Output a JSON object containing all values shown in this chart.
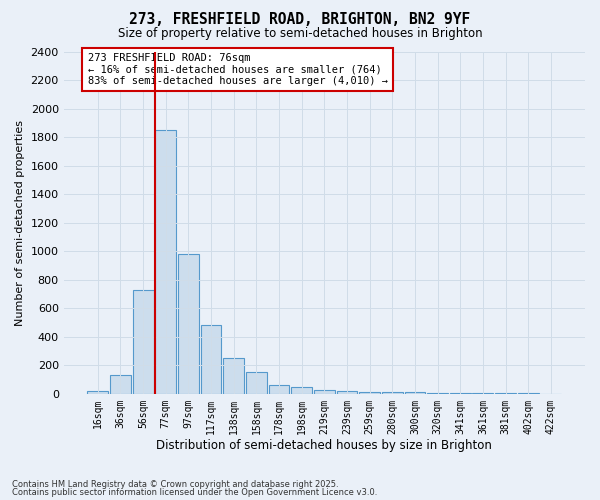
{
  "title_line1": "273, FRESHFIELD ROAD, BRIGHTON, BN2 9YF",
  "title_line2": "Size of property relative to semi-detached houses in Brighton",
  "xlabel": "Distribution of semi-detached houses by size in Brighton",
  "ylabel": "Number of semi-detached properties",
  "categories": [
    "16sqm",
    "36sqm",
    "56sqm",
    "77sqm",
    "97sqm",
    "117sqm",
    "138sqm",
    "158sqm",
    "178sqm",
    "198sqm",
    "219sqm",
    "239sqm",
    "259sqm",
    "280sqm",
    "300sqm",
    "320sqm",
    "341sqm",
    "361sqm",
    "381sqm",
    "402sqm",
    "422sqm"
  ],
  "bar_heights": [
    18,
    130,
    730,
    1850,
    980,
    480,
    250,
    155,
    60,
    45,
    28,
    20,
    15,
    12,
    10,
    8,
    6,
    5,
    4,
    3,
    2
  ],
  "bar_color": "#ccdded",
  "bar_edge_color": "#5599cc",
  "background_color": "#eaf0f8",
  "grid_color": "#d0dce8",
  "ylim": [
    0,
    2400
  ],
  "yticks": [
    0,
    200,
    400,
    600,
    800,
    1000,
    1200,
    1400,
    1600,
    1800,
    2000,
    2200,
    2400
  ],
  "property_bin_index": 3,
  "vline_color": "#cc0000",
  "annotation_text": "273 FRESHFIELD ROAD: 76sqm\n← 16% of semi-detached houses are smaller (764)\n83% of semi-detached houses are larger (4,010) →",
  "annotation_box_facecolor": "#ffffff",
  "annotation_box_edgecolor": "#cc0000",
  "footnote1": "Contains HM Land Registry data © Crown copyright and database right 2025.",
  "footnote2": "Contains public sector information licensed under the Open Government Licence v3.0."
}
